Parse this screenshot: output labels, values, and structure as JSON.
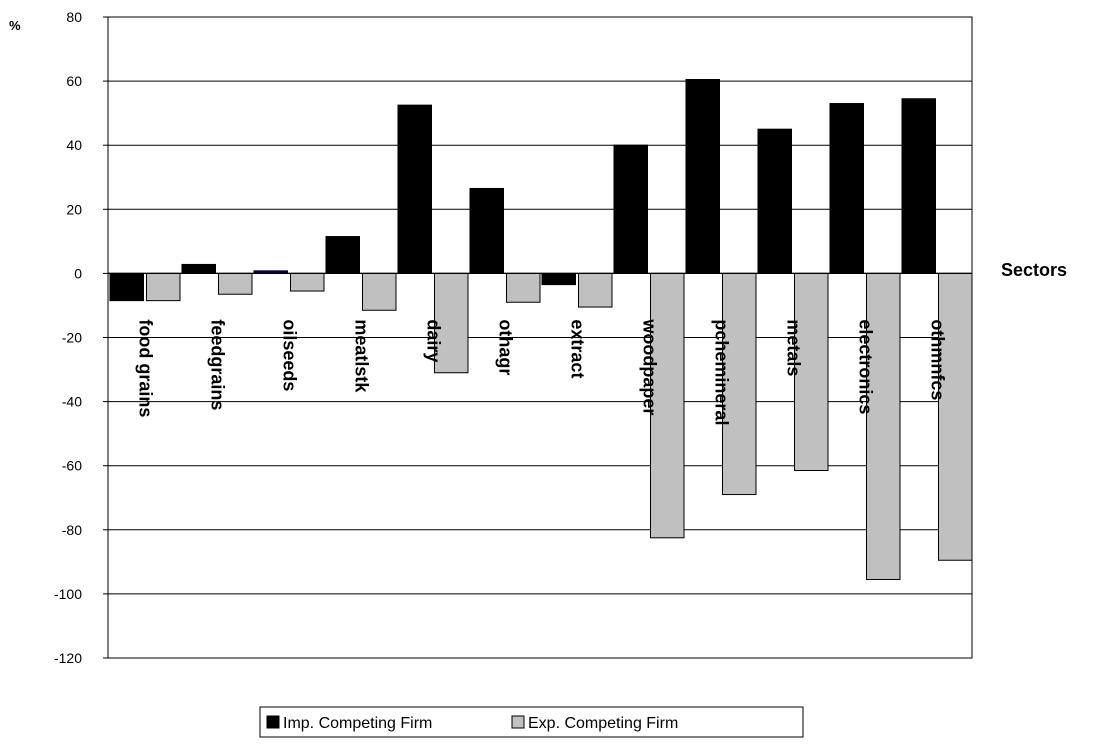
{
  "chart_data": {
    "type": "bar",
    "title": "",
    "ylabel_unit": "%",
    "xlabel": "Sectors",
    "ylim": [
      -120,
      80
    ],
    "y_ticks": [
      80,
      60,
      40,
      20,
      0,
      -20,
      -40,
      -60,
      -80,
      -100,
      -120
    ],
    "grid": "horizontal",
    "legend_position": "bottom",
    "categories": [
      "food grains",
      "feedgrains",
      "oilseeds",
      "meatlstk",
      "dairy",
      "othagr",
      "extract",
      "woodpaper",
      "pchemineral",
      "metals",
      "electronics",
      "othmnfcs"
    ],
    "series": [
      {
        "name": "Imp. Competing Firm",
        "color": "#000000",
        "values": [
          -8.5,
          2.8,
          0.8,
          11.5,
          52.5,
          26.5,
          -3.5,
          40,
          60.5,
          45,
          53,
          54.5
        ]
      },
      {
        "name": "Exp. Competing Firm",
        "color": "#c0c0c0",
        "values": [
          -8.5,
          -6.5,
          -5.5,
          -11.5,
          -31,
          -9,
          -10.5,
          -82.5,
          -69,
          -61.5,
          -95.5,
          -89.5
        ]
      }
    ],
    "colors": {
      "plot_border": "#000000",
      "grid": "#000000",
      "oilseeds_imp_bar": "#000080"
    }
  }
}
